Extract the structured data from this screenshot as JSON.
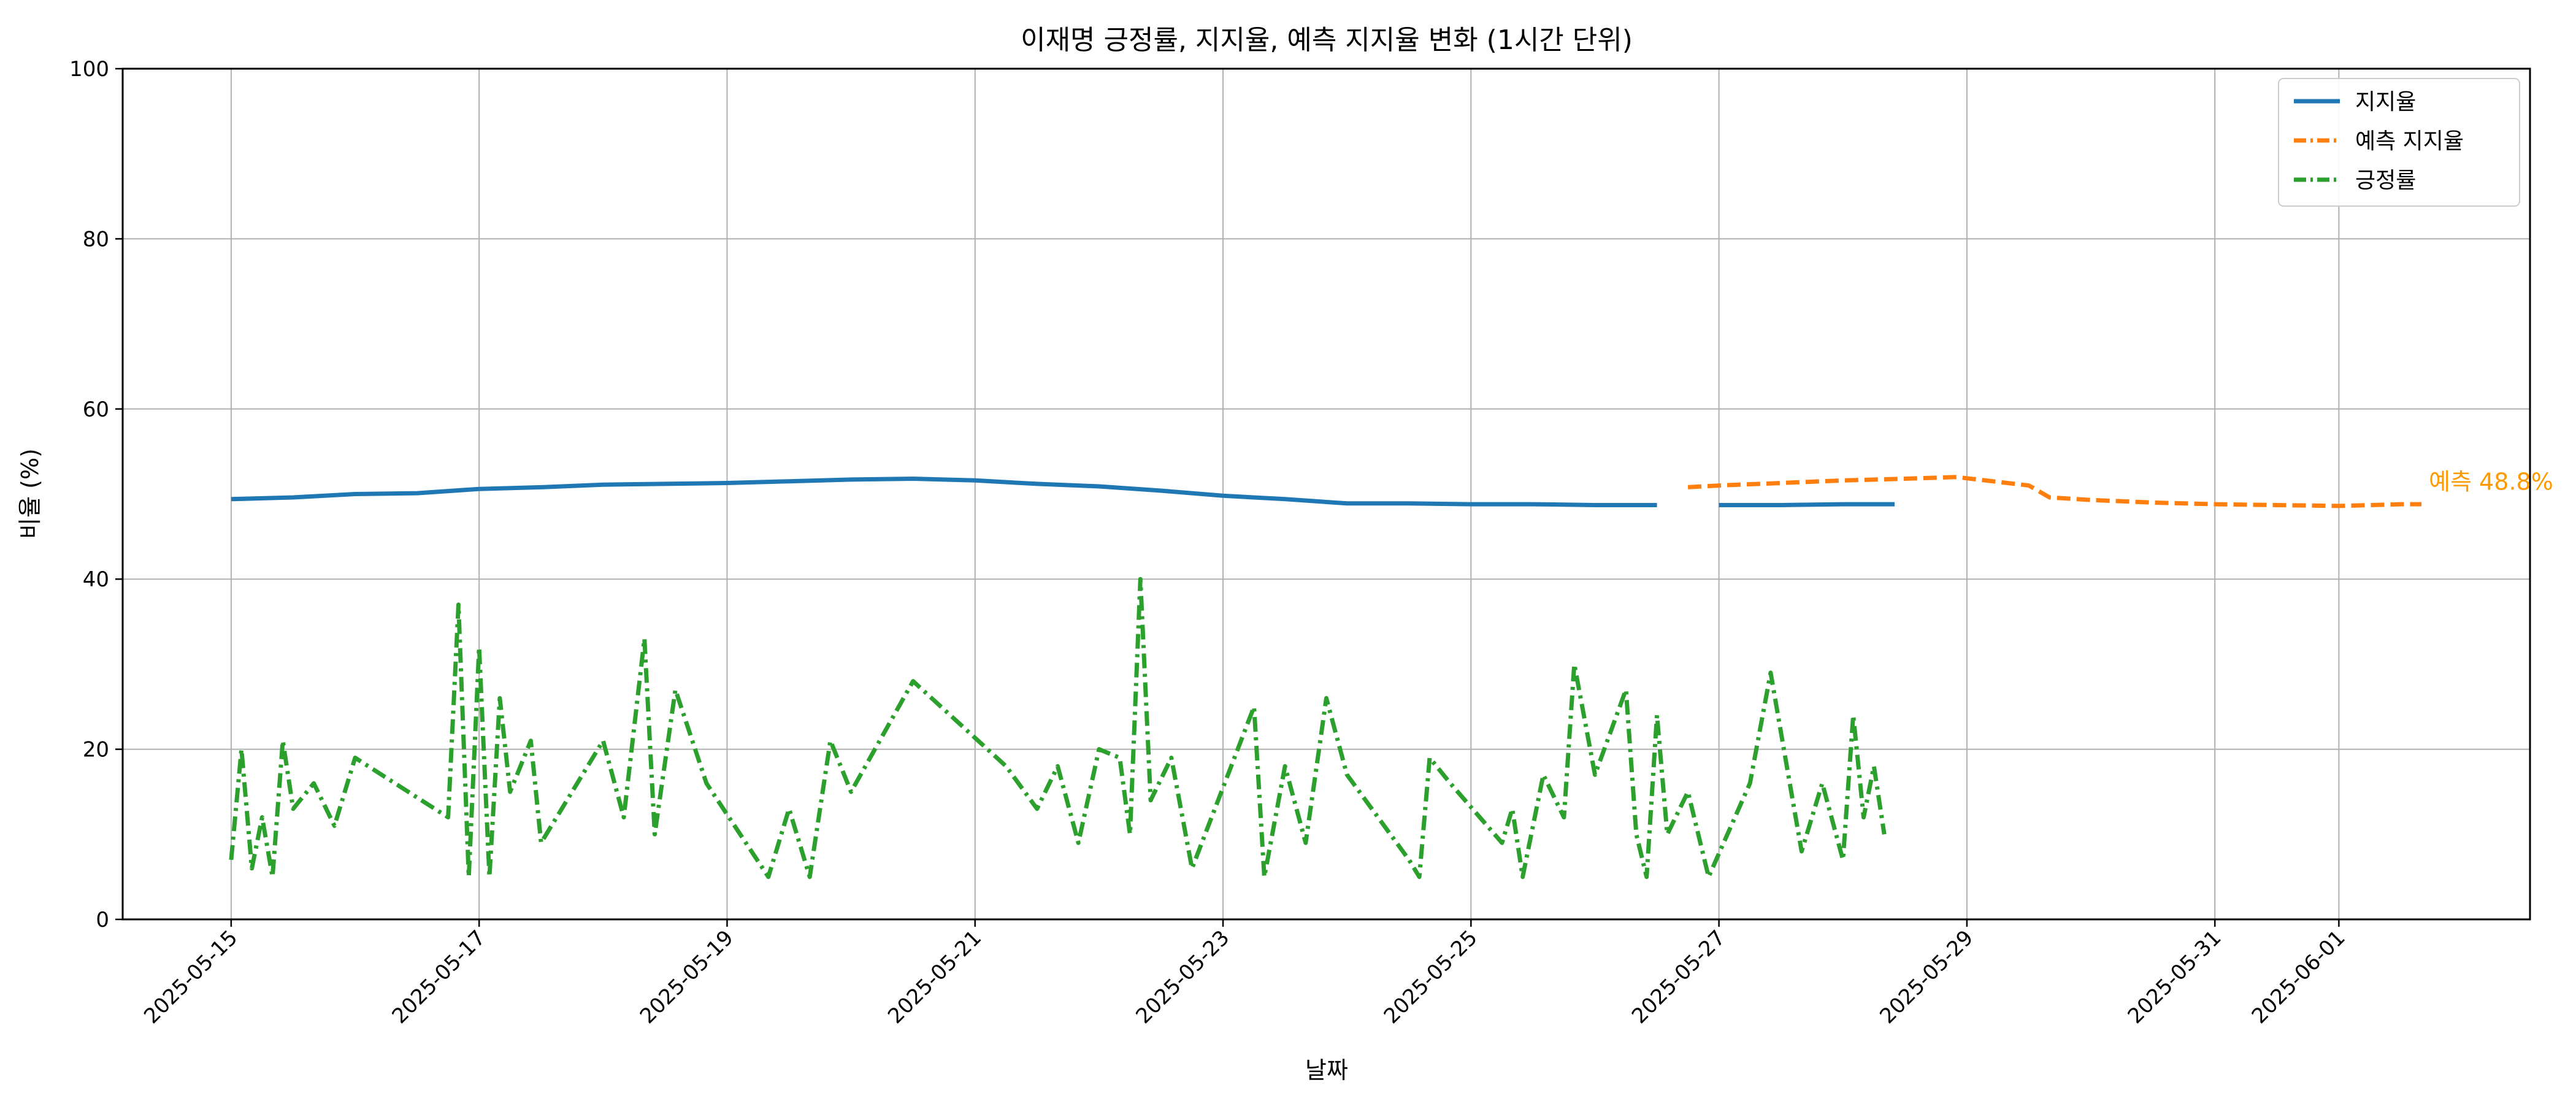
{
  "chart_data": {
    "type": "line",
    "title": "이재명 긍정률, 지지율, 예측 지지율 변화 (1시간 단위)",
    "xlabel": "날짜",
    "ylabel": "비율 (%)",
    "ylim": [
      0,
      100
    ],
    "yticks": [
      0,
      20,
      40,
      60,
      80,
      100
    ],
    "xlim": [
      "2025-05-14T03:00",
      "2025-06-02T13:00"
    ],
    "xticks": [
      "2025-05-15",
      "2025-05-17",
      "2025-05-19",
      "2025-05-21",
      "2025-05-23",
      "2025-05-25",
      "2025-05-27",
      "2025-05-29",
      "2025-05-31",
      "2025-06-01"
    ],
    "grid": true,
    "legend_position": "top-right",
    "legend": [
      "지지율",
      "예측 지지율",
      "긍정률"
    ],
    "colors": {
      "support": "#1f77b4",
      "forecast": "#ff7f0e",
      "positive": "#2ca02c",
      "annotation": "#ff9900"
    },
    "annotation": {
      "text": "예측 48.8%",
      "x": "2025-06-01T16:00",
      "y": 51.5
    },
    "series": [
      {
        "name": "지지율",
        "style": "solid",
        "points": [
          [
            "2025-05-15T00:00",
            49.4
          ],
          [
            "2025-05-15T12:00",
            49.6
          ],
          [
            "2025-05-16T00:00",
            50.0
          ],
          [
            "2025-05-16T12:00",
            50.1
          ],
          [
            "2025-05-17T00:00",
            50.6
          ],
          [
            "2025-05-17T12:00",
            50.8
          ],
          [
            "2025-05-18T00:00",
            51.1
          ],
          [
            "2025-05-18T12:00",
            51.2
          ],
          [
            "2025-05-19T00:00",
            51.3
          ],
          [
            "2025-05-19T12:00",
            51.5
          ],
          [
            "2025-05-20T00:00",
            51.7
          ],
          [
            "2025-05-20T12:00",
            51.8
          ],
          [
            "2025-05-21T00:00",
            51.6
          ],
          [
            "2025-05-21T12:00",
            51.2
          ],
          [
            "2025-05-22T00:00",
            50.9
          ],
          [
            "2025-05-22T12:00",
            50.4
          ],
          [
            "2025-05-23T00:00",
            49.8
          ],
          [
            "2025-05-23T12:00",
            49.4
          ],
          [
            "2025-05-24T00:00",
            48.9
          ],
          [
            "2025-05-24T12:00",
            48.9
          ],
          [
            "2025-05-25T00:00",
            48.8
          ],
          [
            "2025-05-25T12:00",
            48.8
          ],
          [
            "2025-05-26T00:00",
            48.7
          ],
          [
            "2025-05-26T12:00",
            48.7
          ],
          null,
          [
            "2025-05-27T00:00",
            48.7
          ],
          [
            "2025-05-27T12:00",
            48.7
          ],
          [
            "2025-05-28T00:00",
            48.8
          ],
          [
            "2025-05-28T10:00",
            48.8
          ]
        ]
      },
      {
        "name": "예측 지지율",
        "style": "dashed",
        "points": [
          [
            "2025-05-26T18:00",
            50.8
          ],
          [
            "2025-05-27T00:00",
            51.0
          ],
          [
            "2025-05-27T12:00",
            51.3
          ],
          [
            "2025-05-28T00:00",
            51.6
          ],
          [
            "2025-05-28T12:00",
            51.8
          ],
          [
            "2025-05-28T22:00",
            52.0
          ],
          [
            "2025-05-29T12:00",
            51.0
          ],
          [
            "2025-05-29T16:00",
            49.6
          ],
          [
            "2025-05-30T00:00",
            49.3
          ],
          [
            "2025-05-30T12:00",
            49.0
          ],
          [
            "2025-05-31T00:00",
            48.8
          ],
          [
            "2025-05-31T12:00",
            48.7
          ],
          [
            "2025-06-01T00:00",
            48.6
          ],
          [
            "2025-06-01T12:00",
            48.8
          ],
          [
            "2025-06-01T16:00",
            48.8
          ]
        ]
      },
      {
        "name": "긍정률",
        "style": "dashdot",
        "points": [
          [
            "2025-05-15T00:00",
            7
          ],
          [
            "2025-05-15T02:00",
            20
          ],
          [
            "2025-05-15T04:00",
            6
          ],
          [
            "2025-05-15T06:00",
            12
          ],
          [
            "2025-05-15T08:00",
            5
          ],
          [
            "2025-05-15T10:00",
            21
          ],
          [
            "2025-05-15T12:00",
            13
          ],
          [
            "2025-05-15T16:00",
            16
          ],
          [
            "2025-05-15T20:00",
            11
          ],
          [
            "2025-05-16T00:00",
            19
          ],
          [
            "2025-05-16T18:00",
            12
          ],
          [
            "2025-05-16T20:00",
            37
          ],
          [
            "2025-05-16T22:00",
            5
          ],
          [
            "2025-05-17T00:00",
            32
          ],
          [
            "2025-05-17T02:00",
            5
          ],
          [
            "2025-05-17T04:00",
            26
          ],
          [
            "2025-05-17T06:00",
            15
          ],
          [
            "2025-05-17T10:00",
            21
          ],
          [
            "2025-05-17T12:00",
            9
          ],
          [
            "2025-05-18T00:00",
            21
          ],
          [
            "2025-05-18T04:00",
            12
          ],
          [
            "2025-05-18T08:00",
            33
          ],
          [
            "2025-05-18T10:00",
            10
          ],
          [
            "2025-05-18T14:00",
            27
          ],
          [
            "2025-05-18T20:00",
            16
          ],
          [
            "2025-05-19T08:00",
            5
          ],
          [
            "2025-05-19T12:00",
            13
          ],
          [
            "2025-05-19T16:00",
            5
          ],
          [
            "2025-05-19T20:00",
            21
          ],
          [
            "2025-05-20T00:00",
            15
          ],
          [
            "2025-05-20T12:00",
            28
          ],
          [
            "2025-05-21T06:00",
            18
          ],
          [
            "2025-05-21T12:00",
            13
          ],
          [
            "2025-05-21T16:00",
            18
          ],
          [
            "2025-05-21T20:00",
            9
          ],
          [
            "2025-05-22T00:00",
            20
          ],
          [
            "2025-05-22T04:00",
            19
          ],
          [
            "2025-05-22T06:00",
            10
          ],
          [
            "2025-05-22T08:00",
            40
          ],
          [
            "2025-05-22T10:00",
            14
          ],
          [
            "2025-05-22T14:00",
            19
          ],
          [
            "2025-05-22T18:00",
            6
          ],
          [
            "2025-05-23T06:00",
            25
          ],
          [
            "2025-05-23T08:00",
            5
          ],
          [
            "2025-05-23T12:00",
            18
          ],
          [
            "2025-05-23T16:00",
            9
          ],
          [
            "2025-05-23T20:00",
            26
          ],
          [
            "2025-05-24T00:00",
            17
          ],
          [
            "2025-05-24T12:00",
            7
          ],
          [
            "2025-05-24T14:00",
            5
          ],
          [
            "2025-05-24T16:00",
            19
          ],
          [
            "2025-05-24T20:00",
            16
          ],
          [
            "2025-05-25T06:00",
            9
          ],
          [
            "2025-05-25T08:00",
            13
          ],
          [
            "2025-05-25T10:00",
            5
          ],
          [
            "2025-05-25T14:00",
            17
          ],
          [
            "2025-05-25T18:00",
            12
          ],
          [
            "2025-05-25T20:00",
            30
          ],
          [
            "2025-05-26T00:00",
            17
          ],
          [
            "2025-05-26T06:00",
            27
          ],
          [
            "2025-05-26T08:00",
            10
          ],
          [
            "2025-05-26T10:00",
            5
          ],
          [
            "2025-05-26T12:00",
            24
          ],
          [
            "2025-05-26T14:00",
            10
          ],
          [
            "2025-05-26T18:00",
            15
          ],
          [
            "2025-05-26T22:00",
            5
          ],
          [
            "2025-05-27T06:00",
            16
          ],
          [
            "2025-05-27T10:00",
            29
          ],
          [
            "2025-05-27T14:00",
            15
          ],
          [
            "2025-05-27T16:00",
            8
          ],
          [
            "2025-05-27T20:00",
            16
          ],
          [
            "2025-05-28T00:00",
            7
          ],
          [
            "2025-05-28T02:00",
            24
          ],
          [
            "2025-05-28T04:00",
            12
          ],
          [
            "2025-05-28T06:00",
            18
          ],
          [
            "2025-05-28T08:00",
            10
          ]
        ]
      }
    ]
  }
}
